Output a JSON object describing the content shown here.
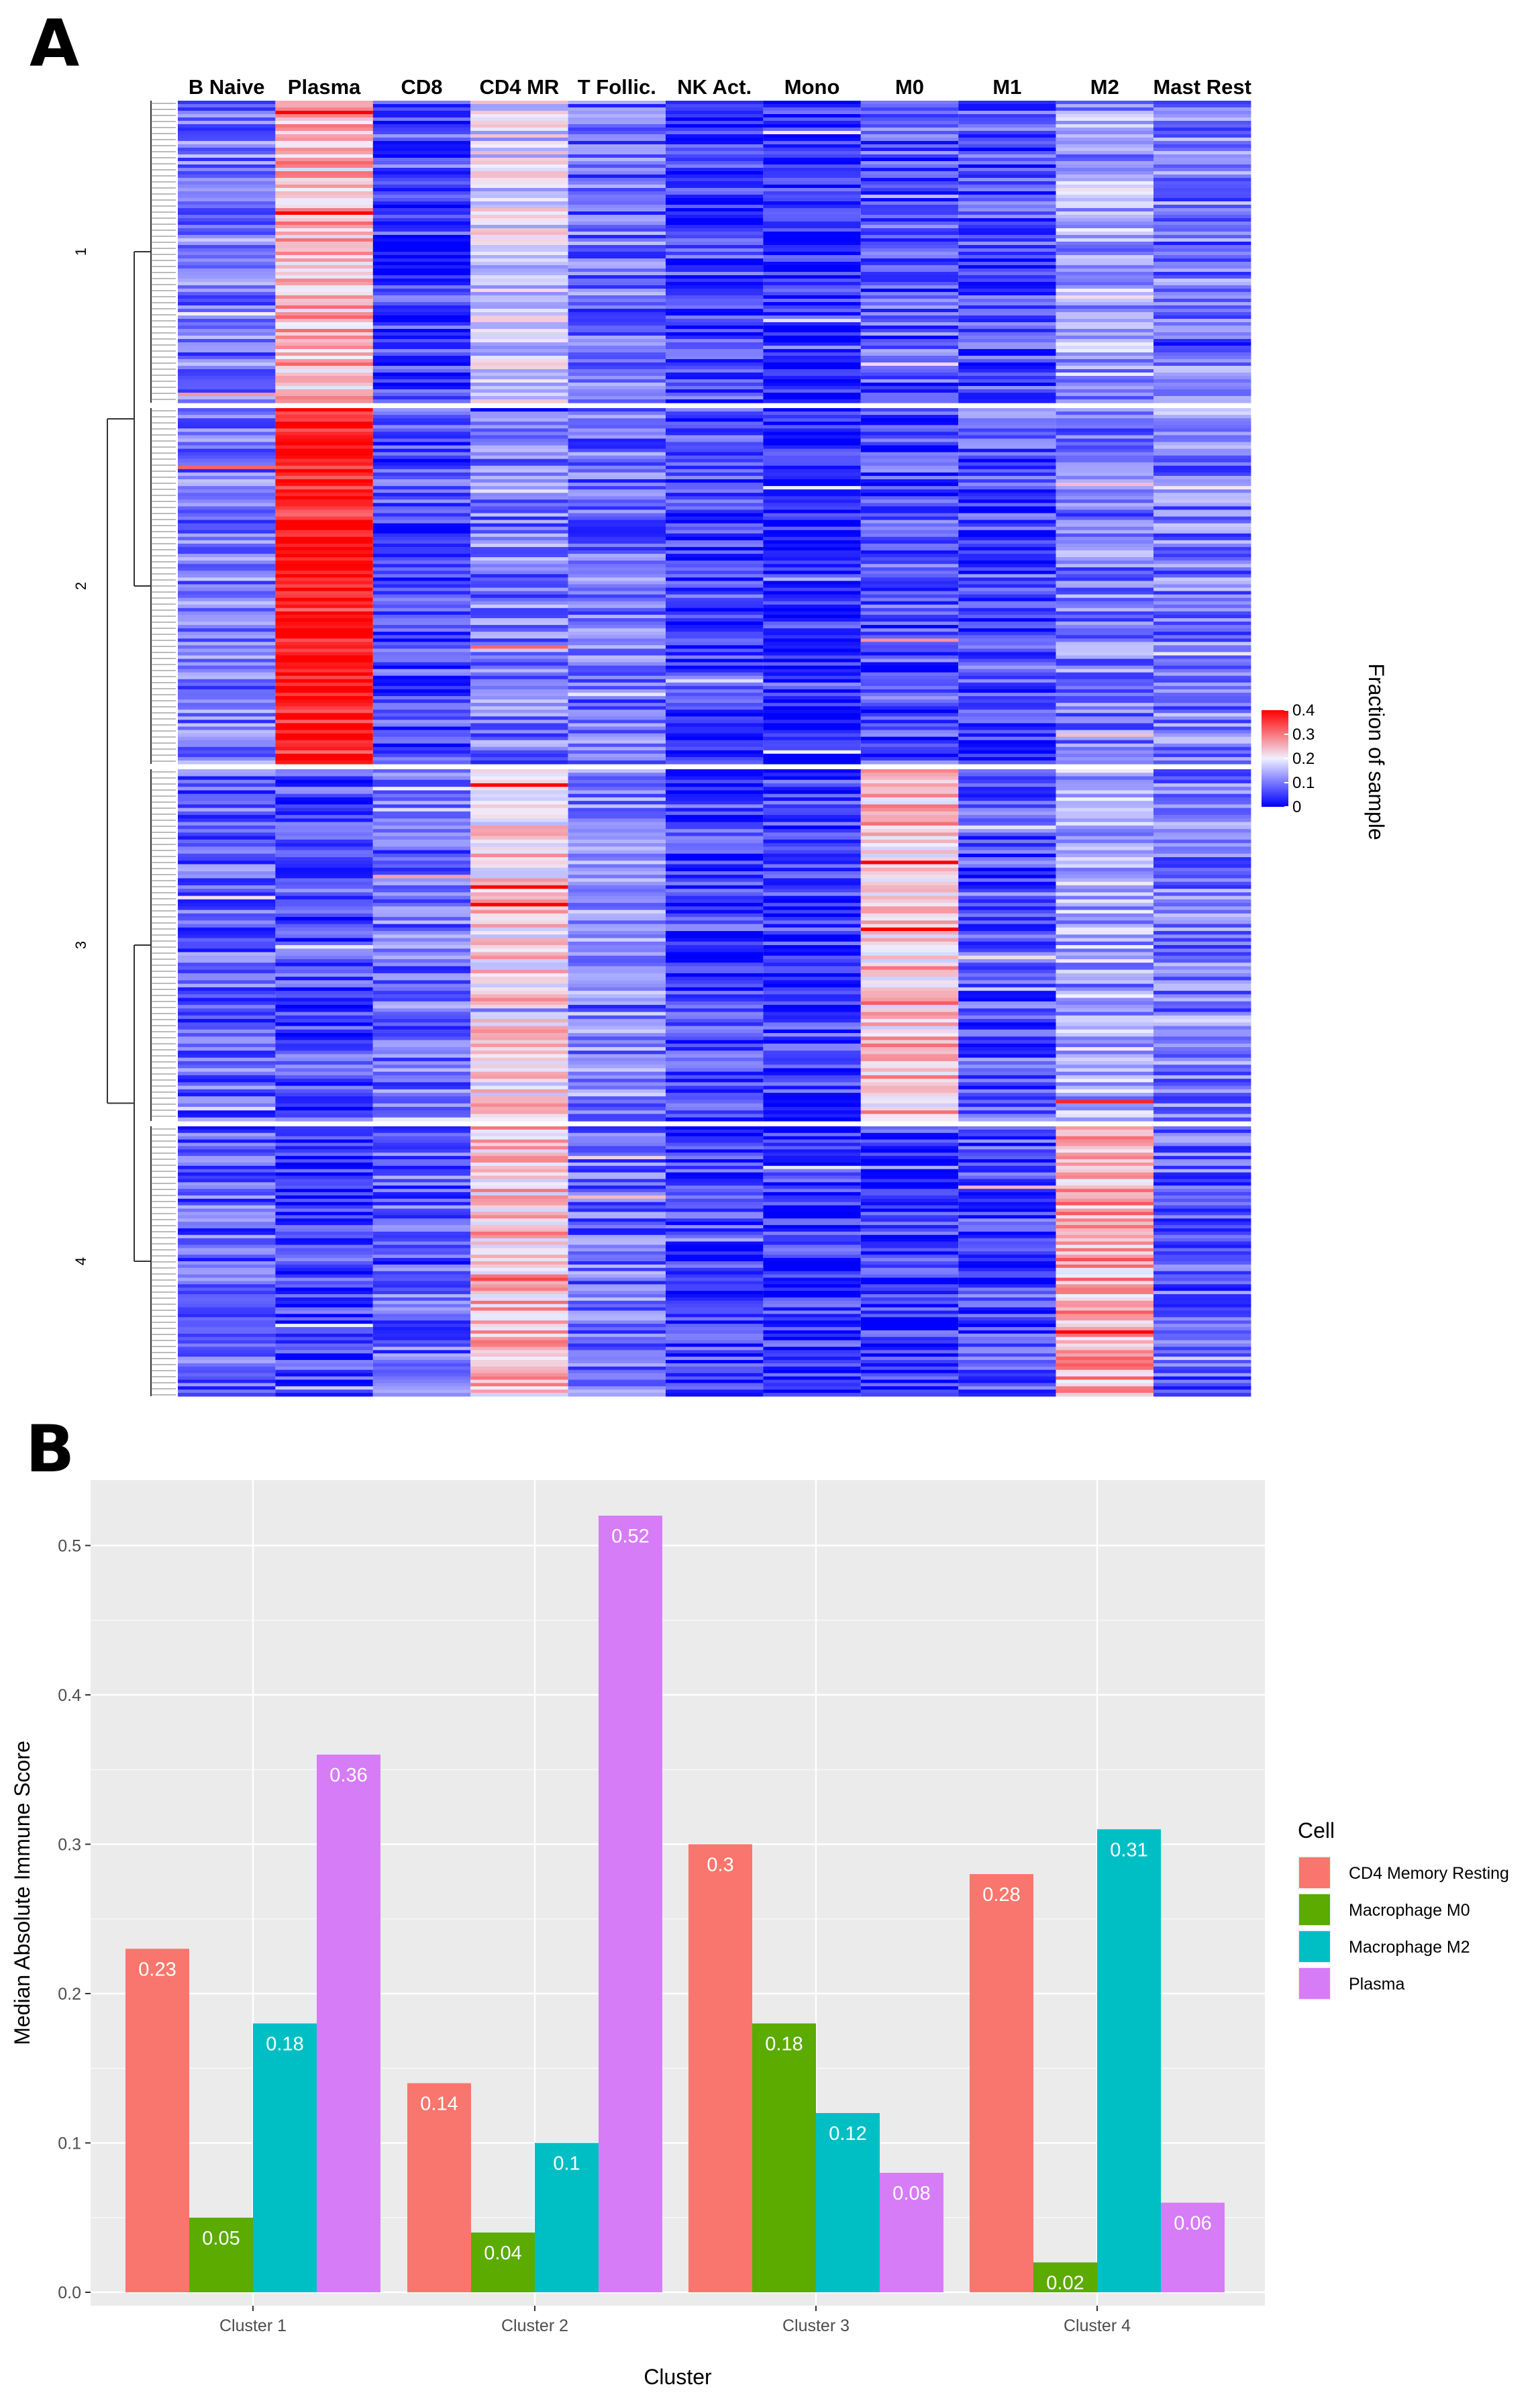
{
  "panels": {
    "a_label": "A",
    "b_label": "B"
  },
  "chart_data": [
    {
      "type": "heatmap",
      "columns": [
        "B Naive",
        "Plasma",
        "CD8",
        "CD4 MR",
        "T Follic.",
        "NK Act.",
        "Mono",
        "M0",
        "M1",
        "M2",
        "Mast Rest"
      ],
      "row_clusters": [
        "1",
        "2",
        "3",
        "4"
      ],
      "cluster_row_counts": [
        90,
        105,
        100,
        82
      ],
      "column_means": [
        [
          0.1,
          0.25,
          0.05,
          0.18,
          0.09,
          0.05,
          0.03,
          0.07,
          0.06,
          0.13,
          0.1
        ],
        [
          0.1,
          0.38,
          0.06,
          0.1,
          0.09,
          0.05,
          0.02,
          0.06,
          0.06,
          0.1,
          0.1
        ],
        [
          0.08,
          0.06,
          0.09,
          0.22,
          0.11,
          0.05,
          0.05,
          0.24,
          0.07,
          0.14,
          0.1
        ],
        [
          0.08,
          0.05,
          0.08,
          0.24,
          0.09,
          0.05,
          0.04,
          0.04,
          0.06,
          0.26,
          0.08
        ]
      ],
      "color_scale": {
        "title": "Fraction of sample",
        "ticks": [
          "0.4",
          "0.3",
          "0.2",
          "0.1",
          "0"
        ],
        "range": [
          0,
          0.4
        ],
        "low": "#0000ff",
        "mid": "#f0f0ff",
        "high": "#ff0000"
      }
    },
    {
      "type": "bar",
      "categories": [
        "Cluster 1",
        "Cluster 2",
        "Cluster 3",
        "Cluster 4"
      ],
      "series": [
        {
          "name": "CD4 Memory Resting",
          "color": "#f8766d",
          "values": [
            0.23,
            0.14,
            0.3,
            0.28
          ],
          "labels": [
            "0.23",
            "0.14",
            "0.3",
            "0.28"
          ]
        },
        {
          "name": "Macrophage M0",
          "color": "#5bab00",
          "values": [
            0.05,
            0.04,
            0.18,
            0.02
          ],
          "labels": [
            "0.05",
            "0.04",
            "0.18",
            "0.02"
          ]
        },
        {
          "name": "Macrophage M2",
          "color": "#00bfc4",
          "values": [
            0.18,
            0.1,
            0.12,
            0.31
          ],
          "labels": [
            "0.18",
            "0.1",
            "0.12",
            "0.31"
          ]
        },
        {
          "name": "Plasma",
          "color": "#d77cf7",
          "values": [
            0.36,
            0.52,
            0.08,
            0.06
          ],
          "labels": [
            "0.36",
            "0.52",
            "0.08",
            "0.06"
          ]
        }
      ],
      "xlabel": "Cluster",
      "ylabel": "Median Absolute Immune Score",
      "ylim": [
        0,
        0.55
      ],
      "yticks": [
        "0.0",
        "0.1",
        "0.2",
        "0.3",
        "0.4",
        "0.5"
      ],
      "legend_title": "Cell",
      "legend_position": "right",
      "grid": true
    }
  ]
}
